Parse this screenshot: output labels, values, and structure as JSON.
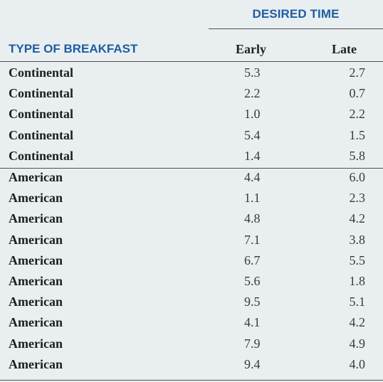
{
  "table": {
    "group_header": "DESIRED TIME",
    "columns": {
      "type": "TYPE OF BREAKFAST",
      "early": "Early",
      "late": "Late"
    },
    "rows": [
      {
        "type": "Continental",
        "early": "5.3",
        "late": "2.7"
      },
      {
        "type": "Continental",
        "early": "2.2",
        "late": "0.7"
      },
      {
        "type": "Continental",
        "early": "1.0",
        "late": "2.2"
      },
      {
        "type": "Continental",
        "early": "5.4",
        "late": "1.5"
      },
      {
        "type": "Continental",
        "early": "1.4",
        "late": "5.8"
      },
      {
        "type": "American",
        "early": "4.4",
        "late": "6.0"
      },
      {
        "type": "American",
        "early": "1.1",
        "late": "2.3"
      },
      {
        "type": "American",
        "early": "4.8",
        "late": "4.2"
      },
      {
        "type": "American",
        "early": "7.1",
        "late": "3.8"
      },
      {
        "type": "American",
        "early": "6.7",
        "late": "5.5"
      },
      {
        "type": "American",
        "early": "5.6",
        "late": "1.8"
      },
      {
        "type": "American",
        "early": "9.5",
        "late": "5.1"
      },
      {
        "type": "American",
        "early": "4.1",
        "late": "4.2"
      },
      {
        "type": "American",
        "early": "7.9",
        "late": "4.9"
      },
      {
        "type": "American",
        "early": "9.4",
        "late": "4.0"
      }
    ]
  },
  "colors": {
    "background": "#e9eef1",
    "header_blue": "#1d5ea0",
    "rule": "#4f4f4f",
    "text": "#1e1e1e"
  }
}
